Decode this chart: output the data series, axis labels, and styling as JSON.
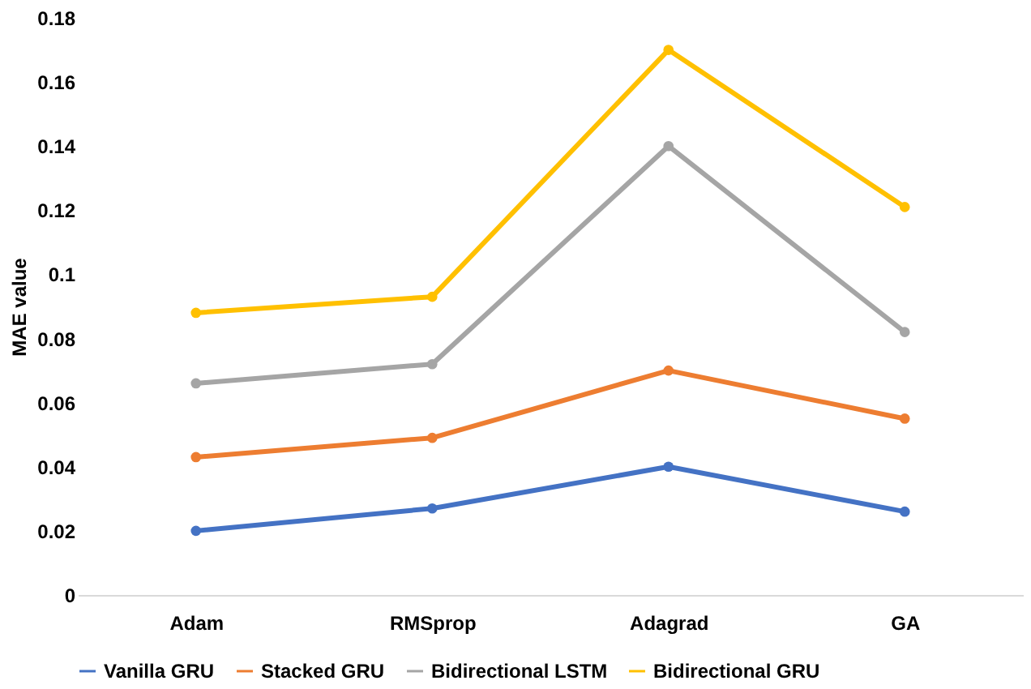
{
  "chart_data": {
    "type": "line",
    "ylabel": "MAE value",
    "categories": [
      "Adam",
      "RMSprop",
      "Adagrad",
      "GA"
    ],
    "series": [
      {
        "name": "Vanilla GRU",
        "color": "#4472c4",
        "values": [
          0.02,
          0.027,
          0.04,
          0.026
        ]
      },
      {
        "name": "Stacked GRU",
        "color": "#ed7d31",
        "values": [
          0.043,
          0.049,
          0.07,
          0.055
        ]
      },
      {
        "name": "Bidirectional LSTM",
        "color": "#a5a5a5",
        "values": [
          0.066,
          0.072,
          0.14,
          0.082
        ]
      },
      {
        "name": "Bidirectional GRU",
        "color": "#ffc000",
        "values": [
          0.088,
          0.093,
          0.17,
          0.121
        ]
      }
    ],
    "ylim": [
      0,
      0.18
    ],
    "yticks": [
      0,
      0.02,
      0.04,
      0.06,
      0.08,
      0.1,
      0.12,
      0.14,
      0.16,
      0.18
    ],
    "grid": false,
    "legend": "bottom",
    "marker": "circle",
    "line_style": "solid"
  }
}
